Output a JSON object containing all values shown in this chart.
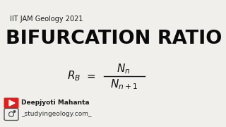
{
  "background_color": "#f0efeb",
  "subtitle": "IIT JAM Geology 2021",
  "title": "BIFURCATION RATIO",
  "author": "Deepjyoti Mahanta",
  "instagram": "_studyingeology.com_",
  "subtitle_color": "#1a1a1a",
  "title_color": "#0a0a0a",
  "formula_color": "#111111",
  "author_color": "#1a1a1a",
  "ig_color": "#333333",
  "youtube_icon_color": "#e0201c"
}
